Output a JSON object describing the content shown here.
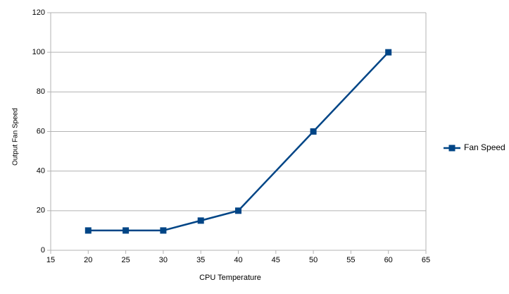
{
  "chart_data": {
    "type": "line",
    "x_label": "CPU Temperature",
    "y_label": "Output Fan Speed",
    "x": [
      20,
      25,
      30,
      35,
      40,
      50,
      60
    ],
    "series": [
      {
        "name": "Fan Speed",
        "color": "#004586",
        "values": [
          10,
          10,
          10,
          15,
          20,
          60,
          100
        ]
      }
    ],
    "xlim": [
      15,
      65
    ],
    "xticks": [
      15,
      20,
      25,
      30,
      35,
      40,
      45,
      50,
      55,
      60,
      65
    ],
    "ylim": [
      0,
      120
    ],
    "yticks": [
      0,
      20,
      40,
      60,
      80,
      100,
      120
    ],
    "grid": true,
    "legend": "right"
  }
}
